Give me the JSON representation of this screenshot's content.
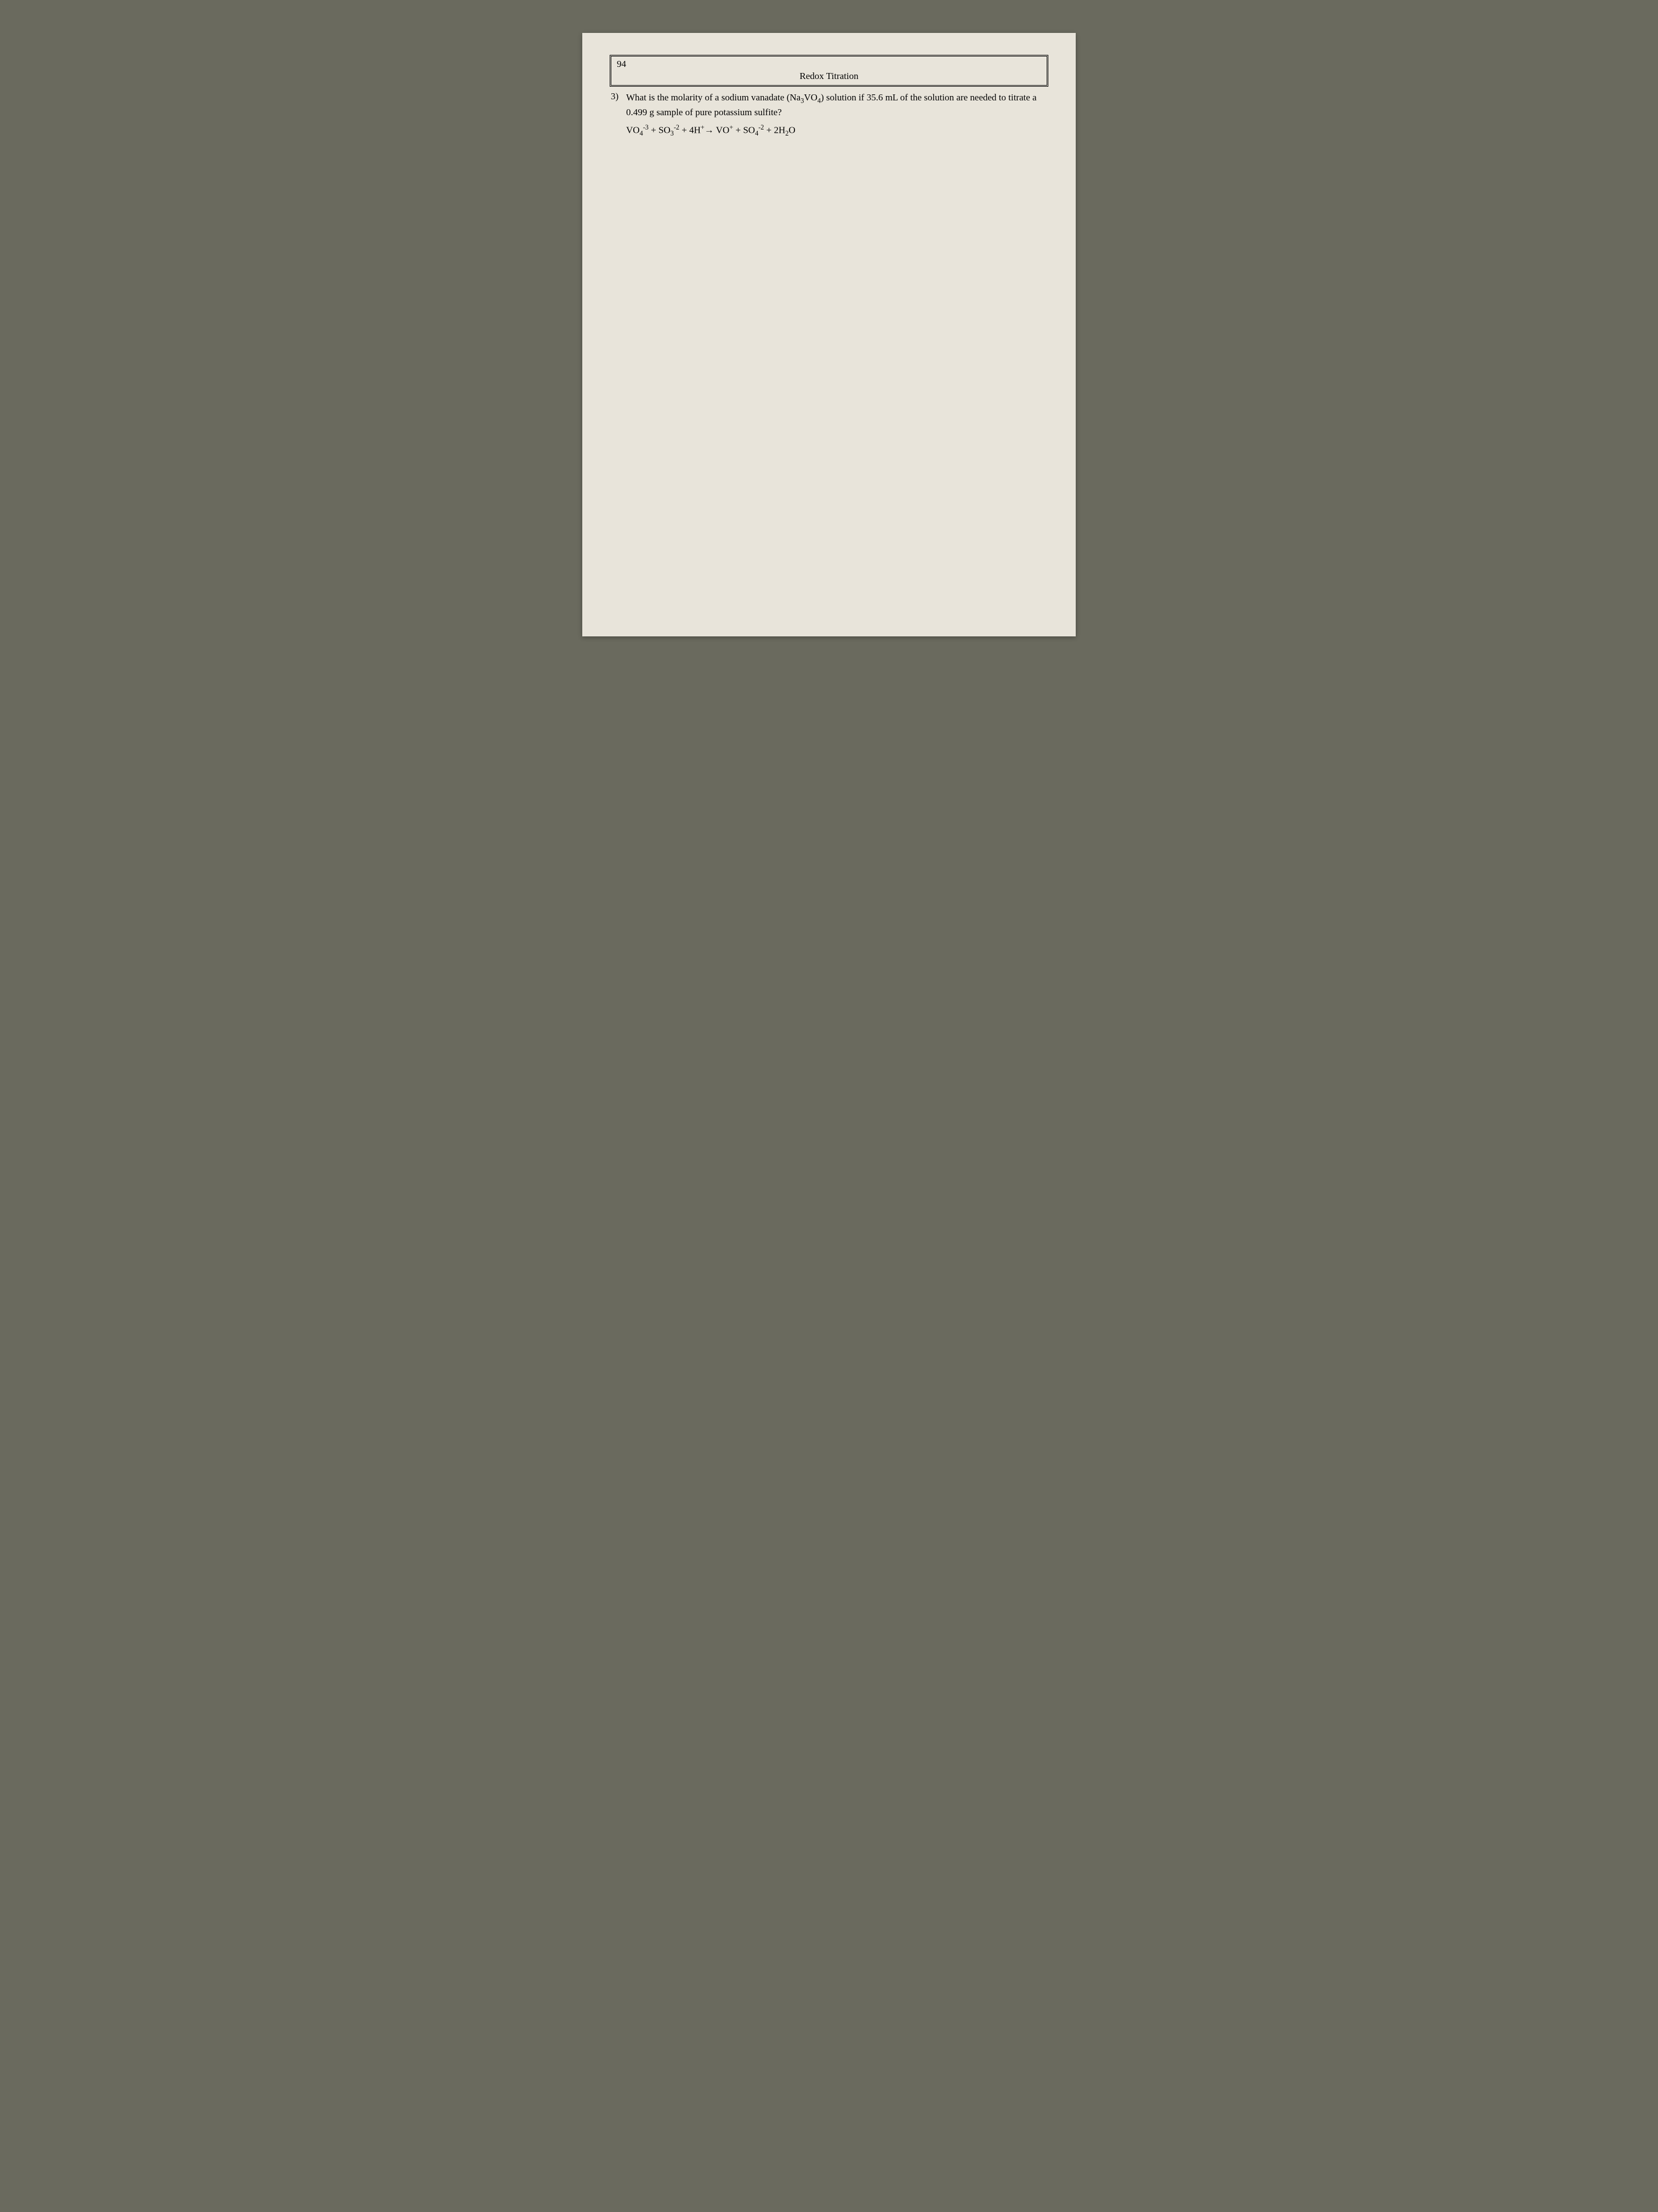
{
  "page": {
    "number": "94",
    "section_title": "Redox Titration",
    "background_color": "#e8e4da",
    "outer_background": "#6a6a5e",
    "text_color": "#000000",
    "font_family": "Times New Roman",
    "base_fontsize": 17
  },
  "question": {
    "number": "3)",
    "text_parts": {
      "prefix": "What is the molarity of a sodium vanadate (Na",
      "sub1": "3",
      "mid1": "VO",
      "sub2": "4",
      "suffix": ") solution if 35.6 mL of the solution are needed to titrate a 0.499 g sample of pure potassium sulfite?"
    },
    "equation_parts": {
      "p1": "VO",
      "p1_sub": "4",
      "p1_sup": "-3",
      "plus1": " + ",
      "p2": "SO",
      "p2_sub": "3",
      "p2_sup": "-2",
      "plus2": " + 4H",
      "p3_sup": "+",
      "arrow": "→ ",
      "p4": "VO",
      "p4_sup": "+",
      "plus3": " + ",
      "p5": "SO",
      "p5_sub": "4",
      "p5_sup": "-2",
      "plus4": " + 2H",
      "p6_sub": "2",
      "p6": "O"
    }
  }
}
